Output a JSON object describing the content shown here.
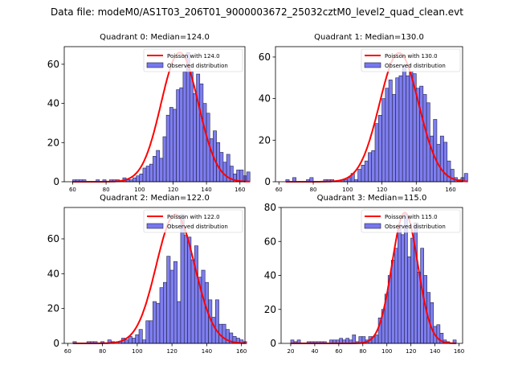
{
  "suptitle": "Data file: modeM0/AS1T03_206T01_9000003672_25032cztM0_level2_quad_clean.evt",
  "colors": {
    "bar_fill": "#7777ee",
    "bar_edge": "#22224a",
    "curve": "#ff0000"
  },
  "chart_data": [
    {
      "type": "bar",
      "title": "Quadrant 0: Median=124.0",
      "legend": [
        "Poisson with 124.0",
        "Observed distribution"
      ],
      "legend_position": "top-right",
      "xlim": [
        55,
        163
      ],
      "ylim": [
        0,
        69
      ],
      "xticks": [
        60,
        80,
        100,
        120,
        140,
        160
      ],
      "yticks": [
        0,
        20,
        40,
        60
      ],
      "bin_start": 60,
      "bin_width": 2,
      "counts": [
        1,
        1,
        1,
        1,
        0,
        0,
        0,
        1,
        0,
        1,
        0,
        1,
        1,
        1,
        0,
        2,
        1,
        1,
        2,
        3,
        4,
        7,
        8,
        9,
        13,
        16,
        12,
        23,
        34,
        38,
        37,
        47,
        48,
        56,
        66,
        56,
        45,
        55,
        50,
        40,
        35,
        22,
        26,
        20,
        15,
        10,
        14,
        8,
        4,
        6,
        6,
        3,
        5
      ],
      "poisson_mean": 124.0,
      "poisson_peak": 66
    },
    {
      "type": "bar",
      "title": "Quadrant 1: Median=130.0",
      "legend": [
        "Poisson with 130.0",
        "Observed distribution"
      ],
      "legend_position": "top-right",
      "xlim": [
        58,
        167
      ],
      "ylim": [
        0,
        65
      ],
      "xticks": [
        60,
        80,
        100,
        120,
        140,
        160
      ],
      "yticks": [
        0,
        20,
        40,
        60
      ],
      "bin_start": 64,
      "bin_width": 2,
      "counts": [
        1,
        0,
        2,
        0,
        0,
        0,
        1,
        2,
        0,
        0,
        0,
        1,
        1,
        1,
        0,
        0,
        1,
        1,
        2,
        4,
        1,
        6,
        8,
        10,
        14,
        15,
        28,
        32,
        40,
        45,
        49,
        42,
        50,
        51,
        56,
        51,
        53,
        52,
        45,
        46,
        42,
        38,
        22,
        30,
        18,
        22,
        19,
        10,
        6,
        2,
        1,
        2,
        4
      ],
      "poisson_mean": 130.0,
      "poisson_peak": 62
    },
    {
      "type": "bar",
      "title": "Quadrant 2: Median=122.0",
      "legend": [
        "Poisson with 122.0",
        "Observed distribution"
      ],
      "legend_position": "top-right",
      "xlim": [
        58,
        162
      ],
      "ylim": [
        0,
        78
      ],
      "xticks": [
        60,
        80,
        100,
        120,
        140,
        160
      ],
      "yticks": [
        0,
        20,
        40,
        60
      ],
      "bin_start": 63,
      "bin_width": 2,
      "counts": [
        1,
        0,
        0,
        0,
        1,
        1,
        1,
        0,
        1,
        0,
        2,
        1,
        0,
        1,
        3,
        2,
        4,
        3,
        5,
        8,
        2,
        13,
        13,
        24,
        23,
        32,
        35,
        50,
        42,
        47,
        24,
        74,
        62,
        61,
        48,
        56,
        38,
        42,
        35,
        25,
        15,
        25,
        11,
        11,
        8,
        6,
        4,
        3,
        2,
        1
      ],
      "poisson_mean": 122.0,
      "poisson_peak": 74
    },
    {
      "type": "bar",
      "title": "Quadrant 3: Median=115.0",
      "legend": [
        "Poisson with 115.0",
        "Observed distribution"
      ],
      "legend_position": "top-right",
      "xlim": [
        12,
        163
      ],
      "ylim": [
        0,
        80
      ],
      "xticks": [
        20,
        40,
        60,
        80,
        100,
        120,
        140,
        160
      ],
      "yticks": [
        0,
        20,
        40,
        60,
        80
      ],
      "bin_start": 20,
      "bin_width": 2.7,
      "counts": [
        2,
        1,
        2,
        0,
        0,
        1,
        1,
        1,
        1,
        1,
        1,
        0,
        2,
        2,
        2,
        3,
        2,
        3,
        2,
        5,
        1,
        4,
        4,
        2,
        4,
        4,
        5,
        15,
        20,
        29,
        40,
        49,
        56,
        70,
        64,
        76,
        51,
        62,
        71,
        42,
        56,
        40,
        30,
        24,
        10,
        11,
        6,
        2,
        1,
        0,
        2
      ],
      "poisson_mean": 115.0,
      "poisson_peak": 77
    }
  ]
}
